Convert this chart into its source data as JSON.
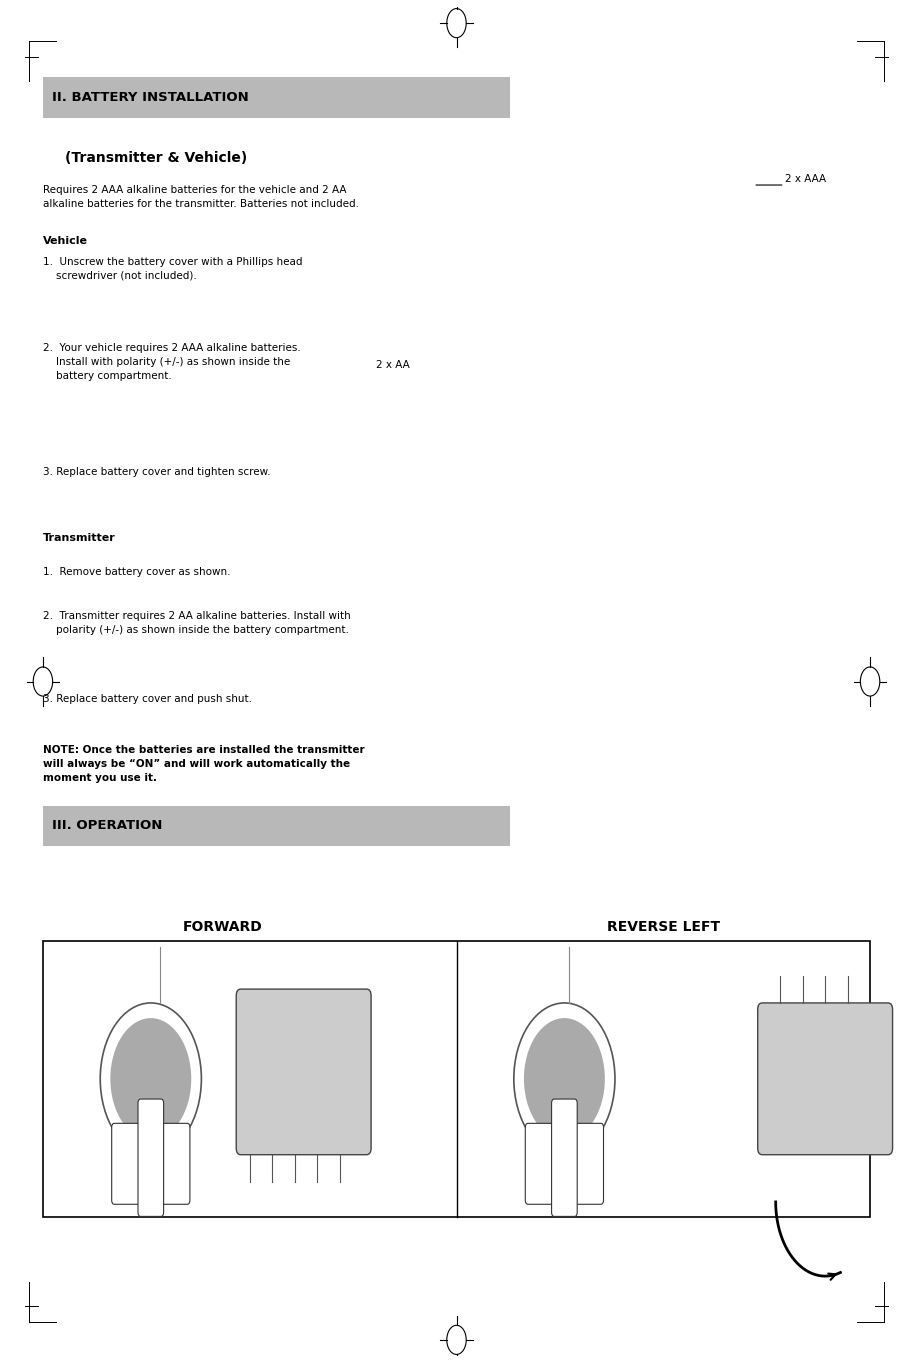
{
  "background_color": "#ffffff",
  "page_width": 9.13,
  "page_height": 13.63,
  "dpi": 100,
  "header1_text": "II. BATTERY INSTALLATION",
  "subtitle_text": "(Transmitter & Vehicle)",
  "intro_text": "Requires 2 AAA alkaline batteries for the vehicle and 2 AA\nalkaline batteries for the transmitter. Batteries not included.",
  "vehicle_heading": "Vehicle",
  "vehicle_steps": [
    "1.  Unscrew the battery cover with a Phillips head\n    screwdriver (not included).",
    "2.  Your vehicle requires 2 AAA alkaline batteries.\n    Install with polarity (+/-) as shown inside the\n    battery compartment.",
    "3. Replace battery cover and tighten screw."
  ],
  "transmitter_heading": "Transmitter",
  "transmitter_steps": [
    "1.  Remove battery cover as shown.",
    "2.  Transmitter requires 2 AA alkaline batteries. Install with\n    polarity (+/-) as shown inside the battery compartment.",
    "3. Replace battery cover and push shut."
  ],
  "note_text": "NOTE: Once the batteries are installed the transmitter\nwill always be “ON” and will work automatically the\nmoment you use it.",
  "header2_text": "III. OPERATION",
  "label_2xAAA": "2 x AAA",
  "label_2xAA": "2 x AA",
  "forward_label": "FORWARD",
  "reverse_label": "REVERSE LEFT",
  "text_color": "#000000",
  "header_bg": "#b8b8b8"
}
